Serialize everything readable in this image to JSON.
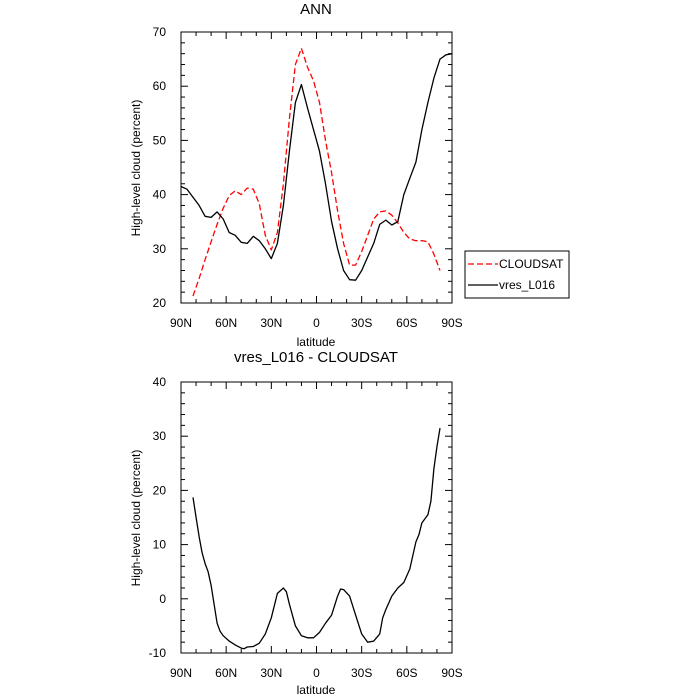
{
  "chart_data": [
    {
      "type": "line",
      "title": "ANN",
      "xlabel": "latitude",
      "ylabel": "High-level cloud (percent)",
      "xlim": [
        90,
        -90
      ],
      "ylim": [
        20,
        70
      ],
      "xticks": [
        90,
        60,
        30,
        0,
        -30,
        -60,
        -90
      ],
      "xtick_labels": [
        "90N",
        "60N",
        "30N",
        "0",
        "30S",
        "60S",
        "90S"
      ],
      "yticks": [
        20,
        30,
        40,
        50,
        60,
        70
      ],
      "ytick_labels": [
        "20",
        "30",
        "40",
        "50",
        "60",
        "70"
      ],
      "legend_position": "right",
      "series": [
        {
          "name": "CLOUDSAT",
          "color": "#ff0000",
          "dash": "dashed",
          "x": [
            82,
            78,
            74,
            70,
            66,
            62,
            58,
            54,
            50,
            46,
            42,
            38,
            34,
            30,
            26,
            22,
            18,
            14,
            10,
            6,
            2,
            -2,
            -6,
            -10,
            -14,
            -18,
            -22,
            -26,
            -30,
            -34,
            -38,
            -42,
            -46,
            -50,
            -54,
            -58,
            -62,
            -66,
            -70,
            -74,
            -78,
            -82
          ],
          "y": [
            21.3,
            24.5,
            28,
            31.3,
            34.5,
            37.5,
            39.8,
            40.7,
            40,
            41.2,
            41,
            38.3,
            32.5,
            29.8,
            33,
            42,
            54,
            64,
            67,
            63.5,
            61,
            57,
            50,
            44,
            37,
            31,
            27,
            27,
            29.5,
            32.5,
            35.5,
            36.8,
            37,
            36.2,
            34.8,
            33,
            31.8,
            31.5,
            31.5,
            31.3,
            29,
            26
          ]
        },
        {
          "name": "vres_L016",
          "color": "#000000",
          "dash": "solid",
          "x": [
            90,
            86,
            82,
            78,
            74,
            70,
            66,
            62,
            58,
            54,
            50,
            46,
            42,
            38,
            34,
            30,
            26,
            22,
            18,
            14,
            10,
            6,
            2,
            -2,
            -6,
            -10,
            -14,
            -18,
            -22,
            -26,
            -30,
            -34,
            -38,
            -42,
            -46,
            -50,
            -54,
            -58,
            -62,
            -66,
            -70,
            -74,
            -78,
            -82,
            -86,
            -90
          ],
          "y": [
            41.5,
            41,
            39.5,
            38,
            36,
            35.8,
            36.8,
            35.5,
            33,
            32.5,
            31.2,
            31,
            32.3,
            31.5,
            30,
            28.2,
            31,
            38,
            48,
            57,
            60.3,
            56,
            52,
            48,
            42,
            35,
            30,
            26,
            24.3,
            24.2,
            26,
            28.5,
            31,
            34.5,
            35.3,
            34.4,
            35,
            40,
            43,
            46,
            52,
            57,
            61.5,
            65,
            65.8,
            66
          ]
        }
      ]
    },
    {
      "type": "line",
      "title": "vres_L016 - CLOUDSAT",
      "xlabel": "latitude",
      "ylabel": "High-level cloud (percent)",
      "xlim": [
        90,
        -90
      ],
      "ylim": [
        -10,
        40
      ],
      "xticks": [
        90,
        60,
        30,
        0,
        -30,
        -60,
        -90
      ],
      "xtick_labels": [
        "90N",
        "60N",
        "30N",
        "0",
        "30S",
        "60S",
        "90S"
      ],
      "yticks": [
        -10,
        0,
        10,
        20,
        30,
        40
      ],
      "ytick_labels": [
        "-10",
        "0",
        "10",
        "20",
        "30",
        "40"
      ],
      "series": [
        {
          "name": "vres_L016 - CLOUDSAT",
          "color": "#000000",
          "dash": "solid",
          "x": [
            82,
            80,
            78,
            76,
            74,
            72,
            70,
            68,
            66,
            64,
            62,
            58,
            54,
            50,
            48,
            46,
            42,
            38,
            34,
            30,
            26,
            22,
            20,
            18,
            14,
            10,
            6,
            2,
            -2,
            -6,
            -10,
            -14,
            -16,
            -18,
            -22,
            -26,
            -30,
            -34,
            -38,
            -42,
            -44,
            -46,
            -50,
            -54,
            -58,
            -62,
            -66,
            -68,
            -70,
            -74,
            -76,
            -78,
            -80,
            -82
          ],
          "y": [
            18.7,
            15,
            11.5,
            8.5,
            6.5,
            5,
            2.5,
            -1,
            -4.5,
            -6,
            -6.8,
            -7.8,
            -8.5,
            -9.1,
            -9.2,
            -8.9,
            -8.8,
            -8.2,
            -6.5,
            -3.5,
            1,
            2,
            1.3,
            -1,
            -5,
            -6.8,
            -7.2,
            -7.2,
            -6.2,
            -4.5,
            -3,
            0.5,
            1.8,
            1.7,
            0.5,
            -3,
            -6.5,
            -8,
            -7.8,
            -6.5,
            -3.5,
            -2,
            0.5,
            2,
            3,
            5.5,
            10.5,
            11.8,
            14,
            15.5,
            18,
            24,
            28,
            31.5
          ]
        }
      ]
    }
  ]
}
